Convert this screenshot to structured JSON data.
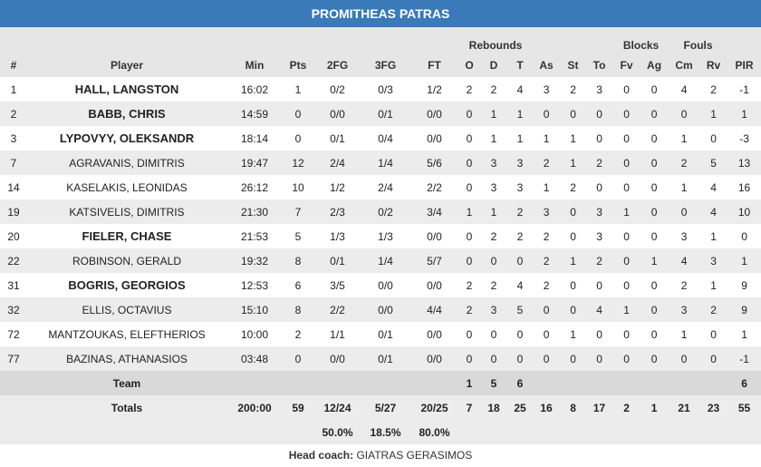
{
  "team_name": "PROMITHEAS PATRAS",
  "groups": {
    "rebounds": "Rebounds",
    "blocks": "Blocks",
    "fouls": "Fouls"
  },
  "columns": [
    "#",
    "Player",
    "Min",
    "Pts",
    "2FG",
    "3FG",
    "FT",
    "O",
    "D",
    "T",
    "As",
    "St",
    "To",
    "Fv",
    "Ag",
    "Cm",
    "Rv",
    "PIR"
  ],
  "players": [
    {
      "num": "1",
      "name": "HALL, LANGSTON",
      "starter": true,
      "stats": [
        "16:02",
        "1",
        "0/2",
        "0/3",
        "1/2",
        "2",
        "2",
        "4",
        "3",
        "2",
        "3",
        "0",
        "0",
        "4",
        "2",
        "-1"
      ]
    },
    {
      "num": "2",
      "name": "BABB, CHRIS",
      "starter": true,
      "stats": [
        "14:59",
        "0",
        "0/0",
        "0/1",
        "0/0",
        "0",
        "1",
        "1",
        "0",
        "0",
        "0",
        "0",
        "0",
        "0",
        "1",
        "1"
      ]
    },
    {
      "num": "3",
      "name": "LYPOVYY, OLEKSANDR",
      "starter": true,
      "stats": [
        "18:14",
        "0",
        "0/1",
        "0/4",
        "0/0",
        "0",
        "1",
        "1",
        "1",
        "1",
        "0",
        "0",
        "0",
        "1",
        "0",
        "-3"
      ]
    },
    {
      "num": "7",
      "name": "AGRAVANIS, DIMITRIS",
      "starter": false,
      "stats": [
        "19:47",
        "12",
        "2/4",
        "1/4",
        "5/6",
        "0",
        "3",
        "3",
        "2",
        "1",
        "2",
        "0",
        "0",
        "2",
        "5",
        "13"
      ]
    },
    {
      "num": "14",
      "name": "KASELAKIS, LEONIDAS",
      "starter": false,
      "stats": [
        "26:12",
        "10",
        "1/2",
        "2/4",
        "2/2",
        "0",
        "3",
        "3",
        "1",
        "2",
        "0",
        "0",
        "0",
        "1",
        "4",
        "16"
      ]
    },
    {
      "num": "19",
      "name": "KATSIVELIS, DIMITRIS",
      "starter": false,
      "stats": [
        "21:30",
        "7",
        "2/3",
        "0/2",
        "3/4",
        "1",
        "1",
        "2",
        "3",
        "0",
        "3",
        "1",
        "0",
        "0",
        "4",
        "10"
      ]
    },
    {
      "num": "20",
      "name": "FIELER, CHASE",
      "starter": true,
      "stats": [
        "21:53",
        "5",
        "1/3",
        "1/3",
        "0/0",
        "0",
        "2",
        "2",
        "2",
        "0",
        "3",
        "0",
        "0",
        "3",
        "1",
        "0"
      ]
    },
    {
      "num": "22",
      "name": "ROBINSON, GERALD",
      "starter": false,
      "stats": [
        "19:32",
        "8",
        "0/1",
        "1/4",
        "5/7",
        "0",
        "0",
        "0",
        "2",
        "1",
        "2",
        "0",
        "1",
        "4",
        "3",
        "1"
      ]
    },
    {
      "num": "31",
      "name": "BOGRIS, GEORGIOS",
      "starter": true,
      "stats": [
        "12:53",
        "6",
        "3/5",
        "0/0",
        "0/0",
        "2",
        "2",
        "4",
        "2",
        "0",
        "0",
        "0",
        "0",
        "2",
        "1",
        "9"
      ]
    },
    {
      "num": "32",
      "name": "ELLIS, OCTAVIUS",
      "starter": false,
      "stats": [
        "15:10",
        "8",
        "2/2",
        "0/0",
        "4/4",
        "2",
        "3",
        "5",
        "0",
        "0",
        "4",
        "1",
        "0",
        "3",
        "2",
        "9"
      ]
    },
    {
      "num": "72",
      "name": "MANTZOUKAS, ELEFTHERIOS",
      "starter": false,
      "stats": [
        "10:00",
        "2",
        "1/1",
        "0/1",
        "0/0",
        "0",
        "0",
        "0",
        "0",
        "1",
        "0",
        "0",
        "0",
        "1",
        "0",
        "1"
      ]
    },
    {
      "num": "77",
      "name": "BAZINAS, ATHANASIOS",
      "starter": false,
      "stats": [
        "03:48",
        "0",
        "0/0",
        "0/1",
        "0/0",
        "0",
        "0",
        "0",
        "0",
        "0",
        "0",
        "0",
        "0",
        "0",
        "0",
        "-1"
      ]
    }
  ],
  "team": {
    "label": "Team",
    "O": "1",
    "D": "5",
    "T": "6",
    "PIR": "6"
  },
  "totals": {
    "label": "Totals",
    "stats": [
      "200:00",
      "59",
      "12/24",
      "5/27",
      "20/25",
      "7",
      "18",
      "25",
      "16",
      "8",
      "17",
      "2",
      "1",
      "21",
      "23",
      "55"
    ]
  },
  "percentages": {
    "fg2": "50.0%",
    "fg3": "18.5%",
    "ft": "80.0%"
  },
  "coach": {
    "label": "Head coach:",
    "name": "GIATRAS GERASIMOS"
  },
  "colors": {
    "title_bar": "#3a7ab8",
    "header_bg": "#e6e6e6",
    "stripe": "#ececec",
    "team_row": "#d9d9d9"
  }
}
